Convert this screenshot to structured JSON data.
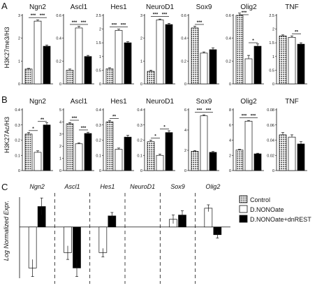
{
  "panels": [
    {
      "label": "A",
      "ylabel": "H3K27me3/H3"
    },
    {
      "label": "B",
      "ylabel": "H3K27Ac/H3"
    },
    {
      "label": "C",
      "ylabel": "Log Normalized Expr."
    }
  ],
  "colors": {
    "control": "#ffffff",
    "dnonoate": "#ffffff",
    "dnrest": "#000000",
    "axis": "#111111"
  },
  "chart_data": [
    {
      "type": "bar",
      "panel": "A",
      "series_order": [
        "Control",
        "D.NONOate",
        "D.NONOate+dnREST"
      ],
      "subplots": [
        {
          "title": "Ngn2",
          "ylim": [
            0,
            3
          ],
          "ticks": [
            0,
            1,
            2,
            3
          ],
          "values": [
            0.65,
            2.75,
            1.65
          ],
          "errors": [
            0.03,
            0.05,
            0.05
          ],
          "sig": [
            {
              "from": 0,
              "to": 1,
              "text": "***"
            },
            {
              "from": 1,
              "to": 2,
              "text": "***"
            }
          ]
        },
        {
          "title": "Ascl1",
          "ylim": [
            0,
            0.6
          ],
          "ticks": [
            0,
            0.2,
            0.4,
            0.6
          ],
          "values": [
            0.12,
            0.49,
            0.24
          ],
          "errors": [
            0.01,
            0.015,
            0.01
          ],
          "sig": [
            {
              "from": 0,
              "to": 1,
              "text": "***"
            },
            {
              "from": 1,
              "to": 2,
              "text": "***"
            }
          ]
        },
        {
          "title": "Hes1",
          "ylim": [
            0,
            2.5
          ],
          "ticks": [
            0,
            0.5,
            1,
            1.5,
            2,
            2.5
          ],
          "values": [
            0.55,
            1.95,
            1.5
          ],
          "errors": [
            0.04,
            0.05,
            0.04
          ],
          "sig": [
            {
              "from": 0,
              "to": 1,
              "text": "***"
            },
            {
              "from": 1,
              "to": 2,
              "text": "***"
            }
          ]
        },
        {
          "title": "NeuroD1",
          "ylim": [
            0,
            3
          ],
          "ticks": [
            0,
            1,
            2,
            3
          ],
          "values": [
            0.55,
            2.8,
            2.6
          ],
          "errors": [
            0.05,
            0.04,
            0.05
          ],
          "sig": [
            {
              "from": 0,
              "to": 1,
              "text": "***"
            },
            {
              "from": 1,
              "to": 2,
              "text": "***"
            }
          ]
        },
        {
          "title": "Sox9",
          "ylim": [
            0,
            0.6
          ],
          "ticks": [
            0,
            0.2,
            0.4,
            0.6
          ],
          "values": [
            0.49,
            0.27,
            0.3
          ],
          "errors": [
            0.015,
            0.01,
            0.015
          ],
          "sig": [
            {
              "from": 0,
              "to": 1,
              "text": "***"
            }
          ]
        },
        {
          "title": "Olig2",
          "ylim": [
            0,
            0.6
          ],
          "ticks": [
            0,
            0.2,
            0.4,
            0.6
          ],
          "values": [
            0.6,
            0.22,
            0.33
          ],
          "errors": [
            0.02,
            0.03,
            0.02
          ],
          "sig": [
            {
              "from": 0,
              "to": 1,
              "text": "***"
            },
            {
              "from": 1,
              "to": 2,
              "text": "*"
            }
          ]
        },
        {
          "title": "TNF",
          "ylim": [
            0,
            2.5
          ],
          "ticks": [
            0,
            0.5,
            1,
            1.5,
            2,
            2.5
          ],
          "values": [
            1.75,
            1.7,
            1.45
          ],
          "errors": [
            0.04,
            0.05,
            0.05
          ],
          "sig": [
            {
              "from": 1,
              "to": 2,
              "text": "**"
            }
          ]
        }
      ]
    },
    {
      "type": "bar",
      "panel": "B",
      "series_order": [
        "Control",
        "D.NONOate",
        "D.NONOate+dnREST"
      ],
      "subplots": [
        {
          "title": "Ngn2",
          "ylim": [
            0,
            0.4
          ],
          "ticks": [
            0,
            0.1,
            0.2,
            0.3,
            0.4
          ],
          "values": [
            0.24,
            0.12,
            0.3
          ],
          "errors": [
            0.01,
            0.01,
            0.015
          ],
          "sig": [
            {
              "from": 0,
              "to": 1,
              "text": "*"
            },
            {
              "from": 1,
              "to": 2,
              "text": "**"
            }
          ]
        },
        {
          "title": "Ascl1",
          "ylim": [
            0,
            5
          ],
          "ticks": [
            0,
            1,
            2,
            3,
            4,
            5
          ],
          "values": [
            3.85,
            2.2,
            3.05
          ],
          "errors": [
            0.1,
            0.08,
            0.1
          ],
          "sig": [
            {
              "from": 0,
              "to": 1,
              "text": "***"
            },
            {
              "from": 1,
              "to": 2,
              "text": "***"
            }
          ]
        },
        {
          "title": "Hes1",
          "ylim": [
            0,
            0.4
          ],
          "ticks": [
            0,
            0.1,
            0.2,
            0.3,
            0.4
          ],
          "values": [
            0.32,
            0.14,
            0.22
          ],
          "errors": [
            0.01,
            0.008,
            0.012
          ],
          "sig": [
            {
              "from": 0,
              "to": 1,
              "text": "**"
            }
          ]
        },
        {
          "title": "NeuroD1",
          "ylim": [
            0,
            0.4
          ],
          "ticks": [
            0,
            0.1,
            0.2,
            0.3,
            0.4
          ],
          "values": [
            0.19,
            0.1,
            0.25
          ],
          "errors": [
            0.01,
            0.008,
            0.012
          ],
          "sig": [
            {
              "from": 0,
              "to": 1,
              "text": "*"
            },
            {
              "from": 1,
              "to": 2,
              "text": "*"
            }
          ]
        },
        {
          "title": "Sox9",
          "ylim": [
            0,
            6
          ],
          "ticks": [
            0,
            2,
            4,
            6
          ],
          "values": [
            1.9,
            5.4,
            1.8
          ],
          "errors": [
            0.08,
            0.1,
            0.08
          ],
          "sig": [
            {
              "from": 0,
              "to": 1,
              "text": "***"
            },
            {
              "from": 1,
              "to": 2,
              "text": "***"
            }
          ]
        },
        {
          "title": "Olig2",
          "ylim": [
            0,
            8
          ],
          "ticks": [
            0,
            2,
            4,
            6,
            8
          ],
          "values": [
            2.7,
            6.5,
            2.2
          ],
          "errors": [
            0.1,
            0.1,
            0.08
          ],
          "sig": [
            {
              "from": 0,
              "to": 1,
              "text": "***"
            },
            {
              "from": 1,
              "to": 2,
              "text": "***"
            }
          ]
        },
        {
          "title": "TNF",
          "ylim": [
            0,
            0.08
          ],
          "ticks": [
            0,
            0.02,
            0.04,
            0.06,
            0.08
          ],
          "values": [
            0.047,
            0.044,
            0.035
          ],
          "errors": [
            0.003,
            0.003,
            0.003
          ],
          "sig": []
        }
      ]
    },
    {
      "type": "bar",
      "panel": "C",
      "ylabel": "Log Normalized Expr.",
      "categories": [
        "Ngn2",
        "Ascl1",
        "Hes1",
        "NeuroD1",
        "Sox9",
        "Olig2"
      ],
      "ylim": [
        -0.6,
        0.35
      ],
      "series": [
        {
          "name": "D.NONOate",
          "values": [
            -0.48,
            -0.3,
            -0.3,
            null,
            0.09,
            0.22
          ],
          "errors": [
            0.1,
            0.08,
            0.05,
            null,
            0.05,
            0.04
          ]
        },
        {
          "name": "D.NONOate+dnREST",
          "values": [
            0.24,
            -0.48,
            0.13,
            null,
            0.14,
            -0.09
          ],
          "errors": [
            0.1,
            0.1,
            0.04,
            null,
            0.05,
            0.04
          ]
        }
      ],
      "legend": {
        "placement": "right",
        "entries": [
          "Control",
          "D.NONOate",
          "D.NONOate+dnREST"
        ]
      }
    }
  ]
}
